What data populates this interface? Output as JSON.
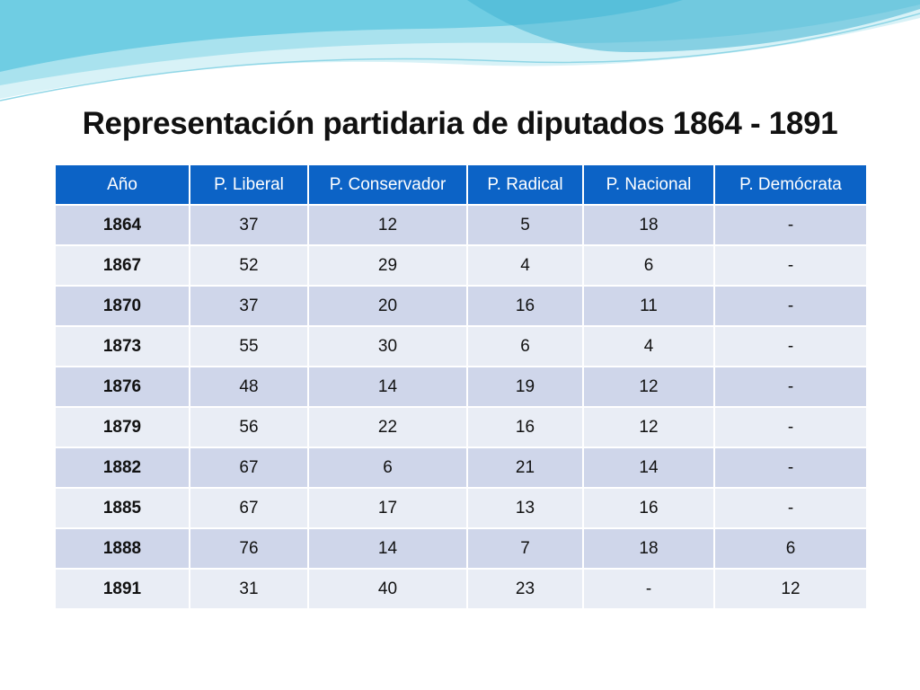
{
  "slide": {
    "title": "Representación partidaria de diputados 1864 - 1891"
  },
  "colors": {
    "header": "#0c63c6",
    "row_odd": "#cfd6ea",
    "row_even": "#e9edf5",
    "wave_light": "#bfe9f2",
    "wave_mid": "#7fd3e6",
    "wave_dark": "#3aaecf"
  },
  "table": {
    "headers": [
      "Año",
      "P. Liberal",
      "P. Conservador",
      "P. Radical",
      "P. Nacional",
      "P. Demócrata"
    ],
    "rows": [
      [
        "1864",
        "37",
        "12",
        "5",
        "18",
        "-"
      ],
      [
        "1867",
        "52",
        "29",
        "4",
        "6",
        "-"
      ],
      [
        "1870",
        "37",
        "20",
        "16",
        "11",
        "-"
      ],
      [
        "1873",
        "55",
        "30",
        "6",
        "4",
        "-"
      ],
      [
        "1876",
        "48",
        "14",
        "19",
        "12",
        "-"
      ],
      [
        "1879",
        "56",
        "22",
        "16",
        "12",
        "-"
      ],
      [
        "1882",
        "67",
        "6",
        "21",
        "14",
        "-"
      ],
      [
        "1885",
        "67",
        "17",
        "13",
        "16",
        "-"
      ],
      [
        "1888",
        "76",
        "14",
        "7",
        "18",
        "6"
      ],
      [
        "1891",
        "31",
        "40",
        "23",
        "-",
        "12"
      ]
    ]
  }
}
